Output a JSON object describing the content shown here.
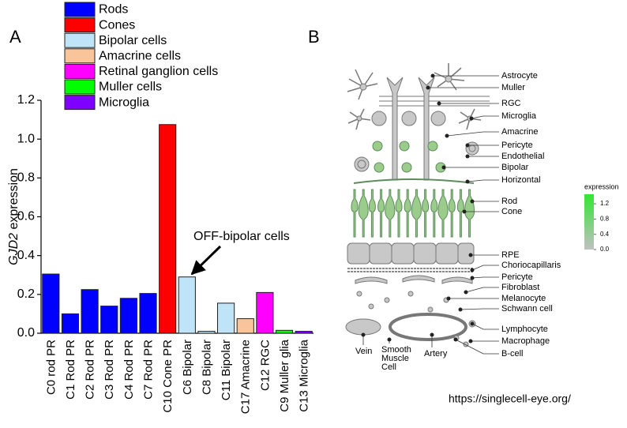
{
  "panel_labels": [
    "A",
    "B"
  ],
  "chart_data": {
    "type": "bar",
    "ylabel_italic": "GJD2",
    "ylabel": "expression",
    "categories": [
      "C0 rod PR",
      "C1 Rod PR",
      "C2 Rod PR",
      "C3 Rod PR",
      "C4 Rod PR",
      "C7 Rod PR",
      "C10 Cone PR",
      "C6 Bipolar",
      "C8 Bipolar",
      "C11 Bipolar",
      "C17 Amacrine",
      "C12 RGC",
      "C9 Muller glia",
      "C13 Microglia"
    ],
    "series": [
      {
        "name": "Rods",
        "color": "#0000ff",
        "values": [
          0.305,
          0.1,
          0.225,
          0.14,
          0.18,
          0.205,
          null,
          null,
          null,
          null,
          null,
          null,
          null,
          null
        ]
      },
      {
        "name": "Cones",
        "color": "#ff0000",
        "values": [
          null,
          null,
          null,
          null,
          null,
          null,
          1.075,
          null,
          null,
          null,
          null,
          null,
          null,
          null
        ]
      },
      {
        "name": "Bipolar cells",
        "color": "#bfe3f7",
        "values": [
          null,
          null,
          null,
          null,
          null,
          null,
          null,
          0.29,
          0.01,
          0.155,
          null,
          null,
          null,
          null
        ]
      },
      {
        "name": "Amacrine cells",
        "color": "#f9c49a",
        "values": [
          null,
          null,
          null,
          null,
          null,
          null,
          null,
          null,
          null,
          null,
          0.075,
          null,
          null,
          null
        ]
      },
      {
        "name": "Retinal ganglion cells",
        "color": "#ff00ff",
        "values": [
          null,
          null,
          null,
          null,
          null,
          null,
          null,
          null,
          null,
          null,
          null,
          0.21,
          null,
          null
        ]
      },
      {
        "name": "Muller cells",
        "color": "#00ff00",
        "values": [
          null,
          null,
          null,
          null,
          null,
          null,
          null,
          null,
          null,
          null,
          null,
          null,
          0.015,
          null
        ]
      },
      {
        "name": "Microglia",
        "color": "#8000ff",
        "values": [
          null,
          null,
          null,
          null,
          null,
          null,
          null,
          null,
          null,
          null,
          null,
          null,
          null,
          0.01
        ]
      }
    ],
    "ylim": [
      0,
      1.2
    ],
    "yticks": [
      {
        "value": 0,
        "label": "0.0"
      },
      0.2,
      0.4,
      0.6,
      0.8,
      {
        "value": 1,
        "label": "1.0"
      },
      1.2
    ],
    "annotation": "OFF-bipolar cells"
  },
  "diagram": {
    "labels": [
      "Astrocyte",
      "Muller",
      "RGC",
      "Microglia",
      "Amacrine",
      "Pericyte",
      "Endothelial",
      "Bipolar",
      "Horizontal",
      "Rod",
      "Cone",
      "RPE",
      "Choriocapillaris",
      "Pericyte",
      "Fibroblast",
      "Melanocyte",
      "Schwann cell",
      "Lymphocyte",
      "Macrophage",
      "B-cell"
    ],
    "vessel_labels": [
      "Vein",
      [
        "Smooth",
        "Muscle",
        "Cell"
      ],
      "Artery"
    ],
    "colorbar": {
      "title": "expression",
      "lim": [
        0,
        1.45
      ],
      "ticks": [
        {
          "value": 0,
          "label": "0.0"
        },
        0.4,
        0.8,
        1.2
      ]
    }
  },
  "source": "https://singlecell-eye.org/"
}
